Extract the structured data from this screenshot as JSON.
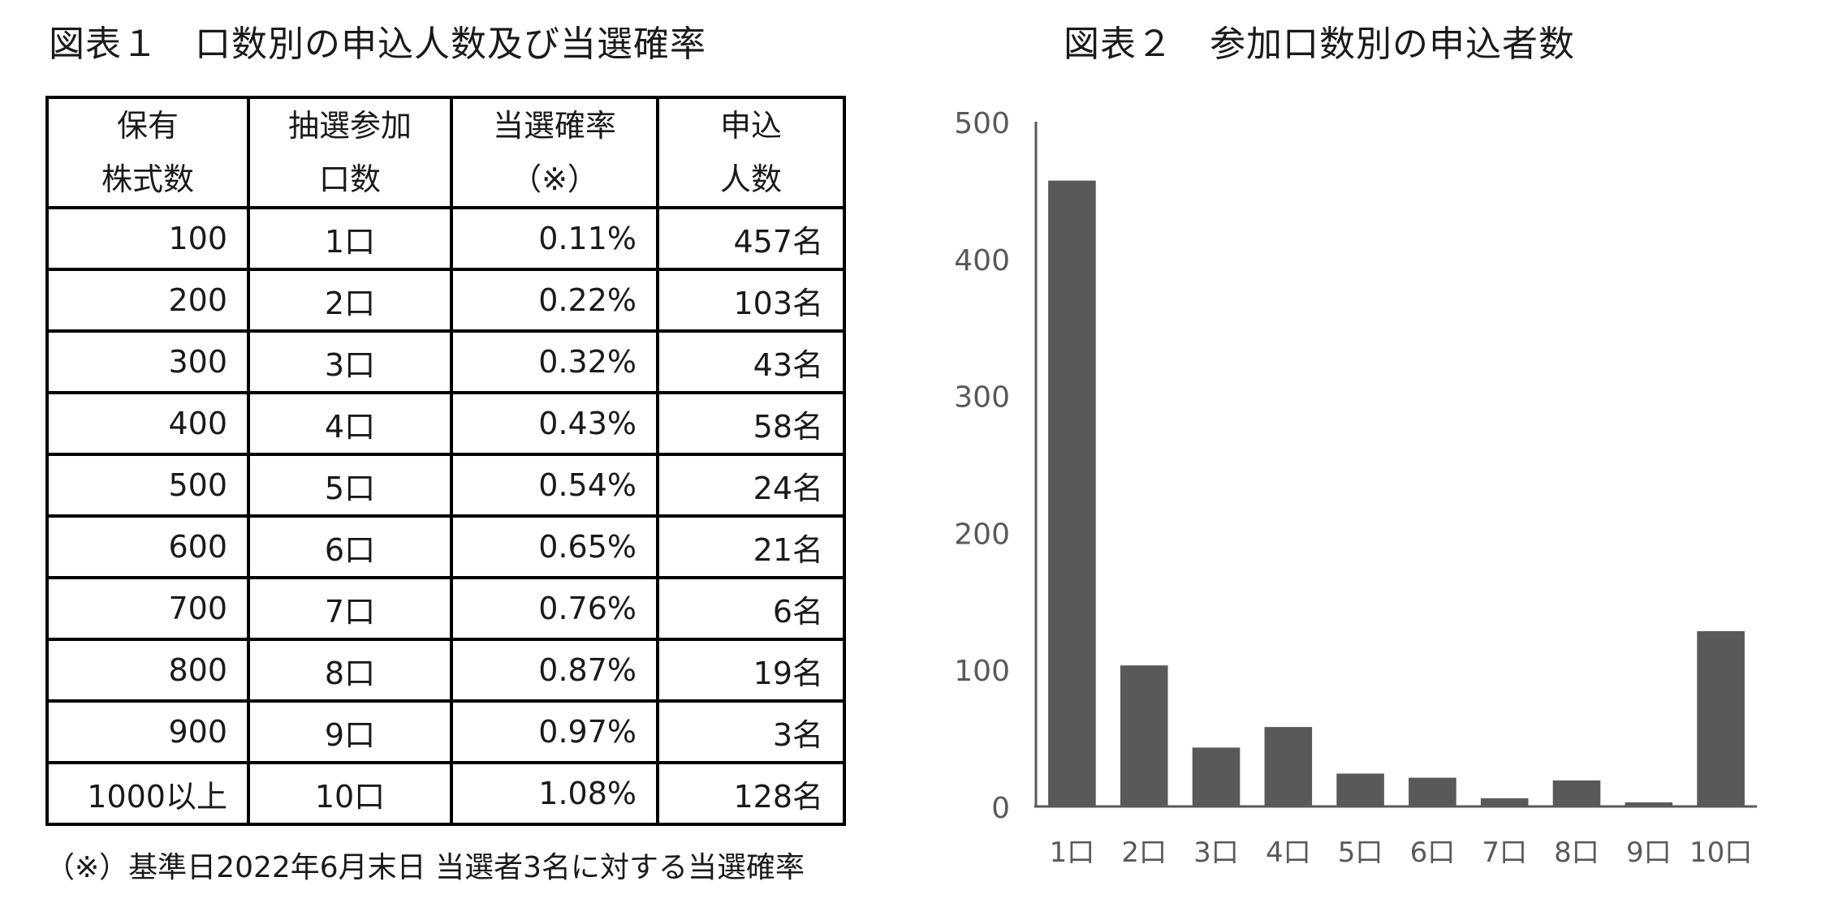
{
  "figure1": {
    "title": "図表１　口数別の申込人数及び当選確率",
    "headers": [
      {
        "line1": "保有",
        "line2": "株式数"
      },
      {
        "line1": "抽選参加",
        "line2": "口数"
      },
      {
        "line1": "当選確率",
        "line2": "（※）"
      },
      {
        "line1": "申込",
        "line2": "人数"
      }
    ],
    "rows": [
      {
        "shares": "100",
        "units": "1口",
        "rate": "0.11%",
        "people": "457名"
      },
      {
        "shares": "200",
        "units": "2口",
        "rate": "0.22%",
        "people": "103名"
      },
      {
        "shares": "300",
        "units": "3口",
        "rate": "0.32%",
        "people": "43名"
      },
      {
        "shares": "400",
        "units": "4口",
        "rate": "0.43%",
        "people": "58名"
      },
      {
        "shares": "500",
        "units": "5口",
        "rate": "0.54%",
        "people": "24名"
      },
      {
        "shares": "600",
        "units": "6口",
        "rate": "0.65%",
        "people": "21名"
      },
      {
        "shares": "700",
        "units": "7口",
        "rate": "0.76%",
        "people": "6名"
      },
      {
        "shares": "800",
        "units": "8口",
        "rate": "0.87%",
        "people": "19名"
      },
      {
        "shares": "900",
        "units": "9口",
        "rate": "0.97%",
        "people": "3名"
      },
      {
        "shares": "1000以上",
        "units": "10口",
        "rate": "1.08%",
        "people": "128名"
      }
    ],
    "note": "（※）基準日2022年6月末日 当選者3名に対する当選確率"
  },
  "figure2": {
    "title": "図表２　参加口数別の申込者数"
  },
  "chart_data": [
    {
      "type": "table",
      "title": "図表１　口数別の申込人数及び当選確率",
      "columns": [
        "保有株式数",
        "抽選参加口数",
        "当選確率（※）",
        "申込人数"
      ],
      "rows": [
        [
          "100",
          "1口",
          "0.11%",
          "457名"
        ],
        [
          "200",
          "2口",
          "0.22%",
          "103名"
        ],
        [
          "300",
          "3口",
          "0.32%",
          "43名"
        ],
        [
          "400",
          "4口",
          "0.43%",
          "58名"
        ],
        [
          "500",
          "5口",
          "0.54%",
          "24名"
        ],
        [
          "600",
          "6口",
          "0.65%",
          "21名"
        ],
        [
          "700",
          "7口",
          "0.76%",
          "6名"
        ],
        [
          "800",
          "8口",
          "0.87%",
          "19名"
        ],
        [
          "900",
          "9口",
          "0.97%",
          "3名"
        ],
        [
          "1000以上",
          "10口",
          "1.08%",
          "128名"
        ]
      ]
    },
    {
      "type": "bar",
      "title": "図表２　参加口数別の申込者数",
      "categories": [
        "1口",
        "2口",
        "3口",
        "4口",
        "5口",
        "6口",
        "7口",
        "8口",
        "9口",
        "10口"
      ],
      "values": [
        457,
        103,
        43,
        58,
        24,
        21,
        6,
        19,
        3,
        128
      ],
      "xlabel": "",
      "ylabel": "",
      "ylim": [
        0,
        500
      ],
      "yticks": [
        0,
        100,
        200,
        300,
        400,
        500
      ],
      "grid": false,
      "legend": "none",
      "bar_color": "#595959",
      "axis_color": "#595959",
      "tick_label_color": "#595959"
    }
  ]
}
